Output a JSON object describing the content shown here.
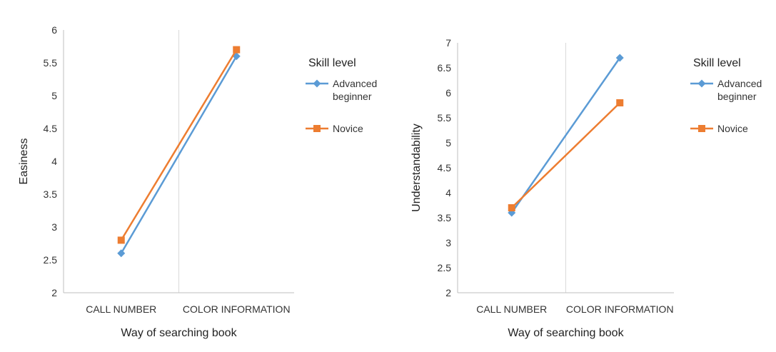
{
  "chart_data": [
    {
      "type": "line",
      "categories": [
        "CALL NUMBER",
        "COLOR INFORMATION"
      ],
      "xlabel": "Way of searching book",
      "ylabel": "Easiness",
      "ylim": [
        2,
        6
      ],
      "yticks": [
        "2",
        "2.5",
        "3",
        "3.5",
        "4",
        "4.5",
        "5",
        "5.5",
        "6"
      ],
      "grid": false,
      "legend": {
        "title": "Skill level",
        "placement": "right"
      },
      "series": [
        {
          "name": "Advanced beginner",
          "name_lines": [
            "Advanced",
            "beginner"
          ],
          "values": [
            2.6,
            5.6
          ],
          "color": "#5b9bd5",
          "marker": "diamond"
        },
        {
          "name": "Novice",
          "name_lines": [
            "Novice"
          ],
          "values": [
            2.8,
            5.7
          ],
          "color": "#ed7d31",
          "marker": "square"
        }
      ]
    },
    {
      "type": "line",
      "categories": [
        "CALL NUMBER",
        "COLOR INFORMATION"
      ],
      "xlabel": "Way of searching book",
      "ylabel": "Understandability",
      "ylim": [
        2,
        7
      ],
      "yticks": [
        "2",
        "2.5",
        "3",
        "3.5",
        "4",
        "4.5",
        "5",
        "5.5",
        "6",
        "6.5",
        "7"
      ],
      "grid": false,
      "legend": {
        "title": "Skill level",
        "placement": "right"
      },
      "series": [
        {
          "name": "Advanced beginner",
          "name_lines": [
            "Advanced",
            "beginner"
          ],
          "values": [
            3.6,
            6.7
          ],
          "color": "#5b9bd5",
          "marker": "diamond"
        },
        {
          "name": "Novice",
          "name_lines": [
            "Novice"
          ],
          "values": [
            3.7,
            5.8
          ],
          "color": "#ed7d31",
          "marker": "square"
        }
      ]
    }
  ]
}
